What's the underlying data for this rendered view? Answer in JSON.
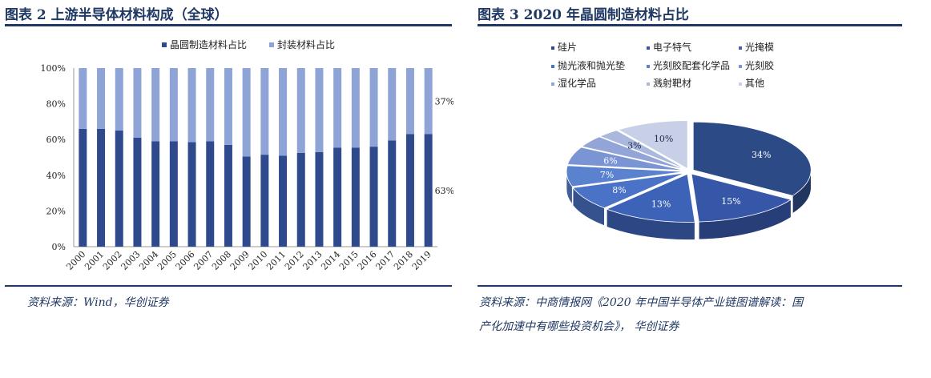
{
  "left_figure": {
    "title": "图表 2    上游半导体材料构成（全球）",
    "source": "资料来源：Wind，华创证券"
  },
  "right_figure": {
    "title": "图表 3    2020 年晶圆制造材料占比",
    "source_line1": "资料来源：中商情报网《2020 年中国半导体产业链图谱解读：国",
    "source_line2": "产化加速中有哪些投资机会》，  华创证券"
  },
  "colors": {
    "dark_blue": "#2e4a8c",
    "light_blue": "#8fa4d6",
    "title_navy": "#1f3864"
  },
  "chart_data": [
    {
      "type": "bar",
      "stacked": true,
      "categories": [
        "2000",
        "2001",
        "2002",
        "2003",
        "2004",
        "2005",
        "2006",
        "2007",
        "2008",
        "2009",
        "2010",
        "2011",
        "2012",
        "2013",
        "2014",
        "2015",
        "2016",
        "2017",
        "2018",
        "2019"
      ],
      "series": [
        {
          "name": "晶圆制造材料占比",
          "color": "#2e4a8c",
          "values": [
            66,
            66,
            65,
            61,
            59,
            59,
            58.5,
            59,
            57,
            50.5,
            51.5,
            51,
            52.5,
            53,
            55.5,
            55.5,
            56,
            59.5,
            63,
            63
          ]
        },
        {
          "name": "封装材料占比",
          "color": "#8fa4d6",
          "values": [
            34,
            34,
            35,
            39,
            41,
            41,
            41.5,
            41,
            43,
            49.5,
            48.5,
            49,
            47.5,
            47,
            44.5,
            44.5,
            44,
            40.5,
            37,
            37
          ]
        }
      ],
      "yticks": [
        "0%",
        "20%",
        "40%",
        "60%",
        "80%",
        "100%"
      ],
      "ylim": [
        0,
        100
      ],
      "data_labels": [
        "37%",
        "63%"
      ],
      "legend_position": "top"
    },
    {
      "type": "pie",
      "style": "3d-exploded",
      "slices": [
        {
          "name": "硅片",
          "value": 34,
          "label": "34%",
          "color": "#2c4a86"
        },
        {
          "name": "电子特气",
          "value": 15,
          "label": "15%",
          "color": "#3656a8"
        },
        {
          "name": "光掩模",
          "value": 13,
          "label": "13%",
          "color": "#3d63b8"
        },
        {
          "name": "抛光液和抛光垫",
          "value": 8,
          "label": "8%",
          "color": "#4a72c6"
        },
        {
          "name": "光刻胶配套化学品",
          "value": 7,
          "label": "7%",
          "color": "#5b82cf"
        },
        {
          "name": "光刻胶",
          "value": 6,
          "label": "6%",
          "color": "#7b95d4"
        },
        {
          "name": "湿化学品",
          "value": 4,
          "label": "",
          "color": "#93a5d6"
        },
        {
          "name": "溅射靶材",
          "value": 3,
          "label": "3%",
          "color": "#aab8de"
        },
        {
          "name": "其他",
          "value": 10,
          "label": "10%",
          "color": "#c8d0e8"
        }
      ],
      "legend_position": "top"
    }
  ]
}
